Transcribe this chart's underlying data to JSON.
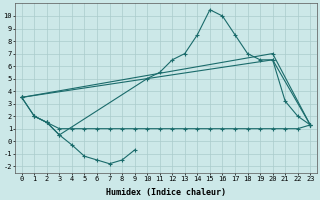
{
  "bg_color": "#cce8e8",
  "grid_color": "#aacccc",
  "line_color": "#1a6b6b",
  "marker": "+",
  "markersize": 3,
  "linewidth": 0.8,
  "xlabel": "Humidex (Indice chaleur)",
  "xlabel_fontsize": 6,
  "xlim": [
    -0.5,
    23.5
  ],
  "ylim": [
    -2.5,
    11.0
  ],
  "xticks": [
    0,
    1,
    2,
    3,
    4,
    5,
    6,
    7,
    8,
    9,
    10,
    11,
    12,
    13,
    14,
    15,
    16,
    17,
    18,
    19,
    20,
    21,
    22,
    23
  ],
  "yticks": [
    -2,
    -1,
    0,
    1,
    2,
    3,
    4,
    5,
    6,
    7,
    8,
    9,
    10
  ],
  "tick_fontsize": 5,
  "series": [
    {
      "x": [
        0,
        1,
        2,
        3,
        10,
        11,
        12,
        13,
        14,
        15,
        16,
        17,
        18,
        19,
        20,
        21,
        22,
        23
      ],
      "y": [
        3.5,
        2.0,
        1.5,
        0.5,
        5.0,
        5.5,
        6.5,
        7.0,
        8.5,
        10.5,
        10.0,
        8.5,
        7.0,
        6.5,
        6.5,
        3.2,
        2.0,
        1.3
      ]
    },
    {
      "x": [
        0,
        1,
        2,
        3,
        4,
        5,
        6,
        7,
        8,
        9
      ],
      "y": [
        3.5,
        2.0,
        1.5,
        0.5,
        -0.3,
        -1.2,
        -1.5,
        -1.8,
        -1.5,
        -0.7
      ]
    },
    {
      "x": [
        0,
        20,
        23
      ],
      "y": [
        3.5,
        7.0,
        1.3
      ]
    },
    {
      "x": [
        0,
        20,
        23
      ],
      "y": [
        3.5,
        6.5,
        1.3
      ]
    },
    {
      "x": [
        1,
        2,
        3,
        4,
        5,
        6,
        7,
        8,
        9,
        10,
        11,
        12,
        13,
        14,
        15,
        16,
        17,
        18,
        19,
        20,
        21,
        22,
        23
      ],
      "y": [
        2.0,
        1.5,
        1.0,
        1.0,
        1.0,
        1.0,
        1.0,
        1.0,
        1.0,
        1.0,
        1.0,
        1.0,
        1.0,
        1.0,
        1.0,
        1.0,
        1.0,
        1.0,
        1.0,
        1.0,
        1.0,
        1.0,
        1.3
      ]
    }
  ]
}
